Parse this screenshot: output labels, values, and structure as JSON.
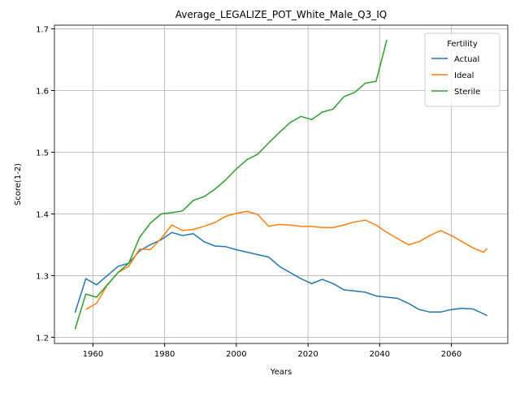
{
  "chart_data": {
    "type": "line",
    "title": "Average_LEGALIZE_POT_White_Male_Q3_IQ",
    "x_label": "Years",
    "y_label": "Score(1-2)",
    "x": [
      1955,
      1958,
      1961,
      1964,
      1967,
      1970,
      1973,
      1976,
      1979,
      1982,
      1985,
      1988,
      1991,
      1994,
      1997,
      2000,
      2003,
      2006,
      2009,
      2012,
      2015,
      2018,
      2021,
      2024,
      2027,
      2030,
      2033,
      2036,
      2039,
      2042,
      2045,
      2048,
      2051,
      2054,
      2057,
      2060,
      2063,
      2066,
      2069,
      2070
    ],
    "series": [
      {
        "name": "Actual",
        "color": "#1f77b4",
        "values": [
          1.24,
          1.295,
          1.285,
          1.3,
          1.315,
          1.32,
          1.34,
          1.35,
          1.358,
          1.37,
          1.365,
          1.368,
          1.355,
          1.348,
          1.347,
          1.342,
          1.338,
          1.334,
          1.33,
          1.315,
          1.305,
          1.295,
          1.287,
          1.294,
          1.287,
          1.277,
          1.275,
          1.273,
          1.267,
          1.265,
          1.263,
          1.255,
          1.245,
          1.241,
          1.241,
          1.245,
          1.247,
          1.246,
          1.238,
          1.235
        ]
      },
      {
        "name": "Ideal",
        "color": "#ff7f0e",
        "values": [
          null,
          1.245,
          1.255,
          1.285,
          1.305,
          1.315,
          1.343,
          1.342,
          1.36,
          1.382,
          1.373,
          1.375,
          1.38,
          1.386,
          1.396,
          1.401,
          1.404,
          1.399,
          1.38,
          1.383,
          1.382,
          1.38,
          1.38,
          1.378,
          1.378,
          1.382,
          1.387,
          1.39,
          1.382,
          1.37,
          1.36,
          1.35,
          1.355,
          1.365,
          1.373,
          1.365,
          1.355,
          1.345,
          1.338,
          1.344
        ]
      },
      {
        "name": "Sterile",
        "color": "#2ca02c",
        "values": [
          1.213,
          1.27,
          1.265,
          1.285,
          1.305,
          1.32,
          1.362,
          1.385,
          1.4,
          1.402,
          1.405,
          1.422,
          1.428,
          1.44,
          1.455,
          1.473,
          1.488,
          1.497,
          1.515,
          1.532,
          1.548,
          1.558,
          1.553,
          1.565,
          1.57,
          1.59,
          1.597,
          1.612,
          1.615,
          1.682,
          null,
          null,
          null,
          null,
          null,
          null,
          null,
          null,
          null,
          null
        ]
      }
    ],
    "legend_title": "Fertility",
    "legend": "upper right",
    "xlim": [
      1949.25,
      2075.75
    ],
    "xticks": [
      1960,
      1980,
      2000,
      2020,
      2040,
      2060
    ],
    "ylim": [
      1.19,
      1.706
    ],
    "yticks": [
      1.2,
      1.3,
      1.4,
      1.5,
      1.6,
      1.7
    ],
    "grid": true
  }
}
